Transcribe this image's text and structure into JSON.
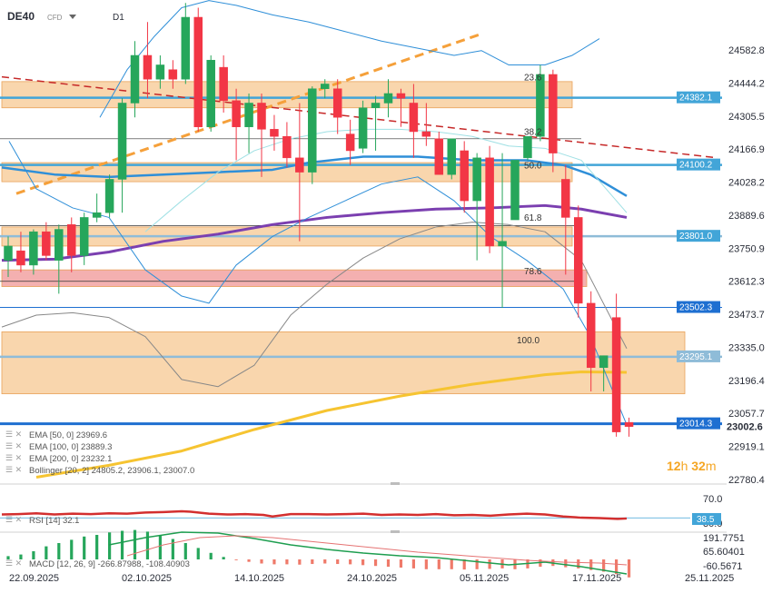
{
  "header": {
    "symbol": "DE40",
    "type_badge": "CFD",
    "timeframe": "D1",
    "dropdown_icon": "caret-down-icon"
  },
  "price_axis": {
    "labels": [
      "24582.8",
      "24444.2",
      "24305.5",
      "24166.9",
      "24028.2",
      "23889.6",
      "23750.9",
      "23612.3",
      "23473.7",
      "23335.0",
      "23196.4",
      "23057.7",
      "22919.1",
      "22780.4"
    ],
    "min": 22780.4,
    "max": 24582.8
  },
  "price_tags": [
    {
      "label": "24382.1",
      "color": "#42a5d8"
    },
    {
      "label": "24100.2",
      "color": "#42a5d8"
    },
    {
      "label": "23801.0",
      "color": "#42a5d8"
    },
    {
      "label": "23502.3",
      "color": "#1e6fd1"
    },
    {
      "label": "23295.1",
      "color": "#8fbcd8"
    },
    {
      "label": "23014.3",
      "color": "#1e6fd1"
    },
    {
      "label": "23002.6",
      "color": "#ffffff"
    }
  ],
  "fib_labels": [
    "23.6",
    "38.2",
    "50.0",
    "61.8",
    "78.6",
    "100.0"
  ],
  "indicators": {
    "ema50": "EMA [50, 0] 23969.6",
    "ema100": "EMA [100, 0] 23889.3",
    "ema200": "EMA [200, 0] 23232.1",
    "bollinger": "Bollinger [20, 2] 24805.2, 23906.1, 23007.0"
  },
  "timer": {
    "hours": "12",
    "h_unit": "h",
    "minutes": "32",
    "m_unit": "m"
  },
  "rsi": {
    "legend": "RSI [14] 32.1",
    "axis_labels": [
      "70.0",
      "30.0"
    ],
    "tag": "38.5"
  },
  "macd": {
    "legend": "MACD [12, 26, 9] -266.87988, -108.40903",
    "axis_labels": [
      "191.7751",
      "65.60401",
      "-60.5671"
    ]
  },
  "dates": [
    "22.09.2025",
    "02.10.2025",
    "14.10.2025",
    "24.10.2025",
    "05.11.2025",
    "17.11.2025",
    "25.11.2025"
  ],
  "chart_data": {
    "type": "candlestick",
    "title": "DE40",
    "timeframe": "D1",
    "ohlc": [
      {
        "o": 23700,
        "h": 23800,
        "l": 23630,
        "c": 23760
      },
      {
        "o": 23740,
        "h": 23820,
        "l": 23650,
        "c": 23680
      },
      {
        "o": 23680,
        "h": 23830,
        "l": 23640,
        "c": 23820
      },
      {
        "o": 23820,
        "h": 23860,
        "l": 23700,
        "c": 23720
      },
      {
        "o": 23700,
        "h": 23850,
        "l": 23560,
        "c": 23830
      },
      {
        "o": 23850,
        "h": 23880,
        "l": 23650,
        "c": 23720
      },
      {
        "o": 23720,
        "h": 23900,
        "l": 23680,
        "c": 23880
      },
      {
        "o": 23880,
        "h": 23980,
        "l": 23860,
        "c": 23900
      },
      {
        "o": 23900,
        "h": 24060,
        "l": 23880,
        "c": 24040
      },
      {
        "o": 24040,
        "h": 24380,
        "l": 23900,
        "c": 24360
      },
      {
        "o": 24360,
        "h": 24620,
        "l": 24300,
        "c": 24560
      },
      {
        "o": 24560,
        "h": 24700,
        "l": 24380,
        "c": 24460
      },
      {
        "o": 24460,
        "h": 24560,
        "l": 24420,
        "c": 24520
      },
      {
        "o": 24500,
        "h": 24540,
        "l": 24420,
        "c": 24460
      },
      {
        "o": 24460,
        "h": 24780,
        "l": 24440,
        "c": 24720
      },
      {
        "o": 24720,
        "h": 24760,
        "l": 24240,
        "c": 24260
      },
      {
        "o": 24260,
        "h": 24560,
        "l": 24240,
        "c": 24540
      },
      {
        "o": 24510,
        "h": 24560,
        "l": 24320,
        "c": 24370
      },
      {
        "o": 24370,
        "h": 24420,
        "l": 24120,
        "c": 24260
      },
      {
        "o": 24260,
        "h": 24400,
        "l": 24150,
        "c": 24360
      },
      {
        "o": 24360,
        "h": 24400,
        "l": 24050,
        "c": 24250
      },
      {
        "o": 24250,
        "h": 24310,
        "l": 24160,
        "c": 24220
      },
      {
        "o": 24220,
        "h": 24280,
        "l": 24090,
        "c": 24130
      },
      {
        "o": 24130,
        "h": 24360,
        "l": 23780,
        "c": 24070
      },
      {
        "o": 24070,
        "h": 24430,
        "l": 24020,
        "c": 24420
      },
      {
        "o": 24420,
        "h": 24460,
        "l": 24380,
        "c": 24440
      },
      {
        "o": 24420,
        "h": 24460,
        "l": 24230,
        "c": 24300
      },
      {
        "o": 24230,
        "h": 24290,
        "l": 24100,
        "c": 24160
      },
      {
        "o": 24170,
        "h": 24370,
        "l": 24150,
        "c": 24340
      },
      {
        "o": 24340,
        "h": 24390,
        "l": 24160,
        "c": 24360
      },
      {
        "o": 24360,
        "h": 24460,
        "l": 24300,
        "c": 24400
      },
      {
        "o": 24400,
        "h": 24420,
        "l": 24260,
        "c": 24380
      },
      {
        "o": 24360,
        "h": 24440,
        "l": 24130,
        "c": 24240
      },
      {
        "o": 24240,
        "h": 24360,
        "l": 24180,
        "c": 24220
      },
      {
        "o": 24210,
        "h": 24240,
        "l": 24060,
        "c": 24060
      },
      {
        "o": 24060,
        "h": 24210,
        "l": 24040,
        "c": 24210
      },
      {
        "o": 24160,
        "h": 24200,
        "l": 23900,
        "c": 23950
      },
      {
        "o": 23950,
        "h": 24150,
        "l": 23700,
        "c": 24130
      },
      {
        "o": 24130,
        "h": 24180,
        "l": 23730,
        "c": 23760
      },
      {
        "o": 23760,
        "h": 24150,
        "l": 23500,
        "c": 23780
      },
      {
        "o": 23870,
        "h": 24120,
        "l": 23870,
        "c": 24120
      },
      {
        "o": 24130,
        "h": 24220,
        "l": 24120,
        "c": 24220
      },
      {
        "o": 24220,
        "h": 24520,
        "l": 24200,
        "c": 24480
      },
      {
        "o": 24480,
        "h": 24500,
        "l": 24070,
        "c": 24150
      },
      {
        "o": 24040,
        "h": 24100,
        "l": 23640,
        "c": 23880
      },
      {
        "o": 23880,
        "h": 23930,
        "l": 23460,
        "c": 23520
      },
      {
        "o": 23520,
        "h": 23570,
        "l": 23150,
        "c": 23250
      },
      {
        "o": 23250,
        "h": 23300,
        "l": 23150,
        "c": 23300
      },
      {
        "o": 23460,
        "h": 23560,
        "l": 22960,
        "c": 22980
      },
      {
        "o": 23020,
        "h": 23040,
        "l": 22960,
        "c": 23002.6
      }
    ],
    "horizontal_levels": [
      24382.1,
      24100.2,
      23801.0,
      23502.3,
      23295.1,
      23014.3
    ],
    "fibonacci": [
      {
        "level": "23.6",
        "price": 24444.2
      },
      {
        "level": "38.2",
        "price": 24215
      },
      {
        "level": "50.0",
        "price": 24075
      },
      {
        "level": "61.8",
        "price": 23855
      },
      {
        "level": "78.6",
        "price": 23630
      },
      {
        "level": "100.0",
        "price": 23340
      }
    ],
    "zones": [
      {
        "from": 24340,
        "to": 24450,
        "color": "#f7c48a"
      },
      {
        "from": 24030,
        "to": 24110,
        "color": "#f7c48a"
      },
      {
        "from": 23760,
        "to": 23840,
        "color": "#f7c48a"
      },
      {
        "from": 23590,
        "to": 23660,
        "color": "#ef8f8f"
      },
      {
        "from": 23140,
        "to": 23400,
        "color": "#f7c48a"
      }
    ],
    "ema50_last": 23969.6,
    "ema100_last": 23889.3,
    "ema200_last": 23232.1,
    "bollinger_last": {
      "upper": 24805.2,
      "middle": 23906.1,
      "lower": 23007.0
    },
    "rsi_last": 32.1,
    "macd_last": {
      "macd": -266.87988,
      "signal": -108.40903
    },
    "macd_hist": [
      20,
      30,
      50,
      80,
      100,
      120,
      140,
      150,
      165,
      175,
      180,
      170,
      150,
      125,
      100,
      70,
      40,
      15,
      -5,
      -15,
      -25,
      -30,
      -30,
      -32,
      -28,
      -25,
      -28,
      -30,
      -35,
      -40,
      -45,
      -50,
      -55,
      -60,
      -60,
      -60,
      -62,
      -60,
      -58,
      -55,
      -60,
      -55,
      -45,
      -40,
      -48,
      -55,
      -65,
      -75,
      -90,
      -110
    ]
  }
}
